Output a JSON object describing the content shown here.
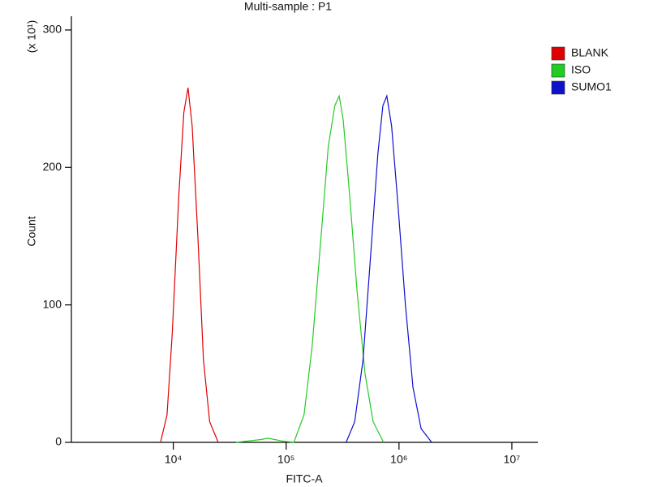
{
  "chart_data": {
    "type": "line",
    "title": "Multi-sample : P1",
    "x_label": "FITC-A",
    "y_label": "Count",
    "y_multiplier": "(x 10¹)",
    "x_scale": "log",
    "xlim": [
      1250,
      17000000
    ],
    "xticks": [
      {
        "value": 10000,
        "label": "10⁴"
      },
      {
        "value": 100000,
        "label": "10⁵"
      },
      {
        "value": 1000000,
        "label": "10⁶"
      },
      {
        "value": 10000000,
        "label": "10⁷"
      }
    ],
    "ylim": [
      0,
      310
    ],
    "yticks": [
      0,
      100,
      200,
      300
    ],
    "legend": "right",
    "series": [
      {
        "name": "BLANK",
        "color": "#e00000",
        "x": [
          7700,
          8800,
          9800,
          11200,
          12400,
          13500,
          14700,
          16500,
          18500,
          21000,
          25000
        ],
        "values": [
          0,
          20,
          80,
          180,
          240,
          258,
          230,
          150,
          60,
          15,
          0
        ]
      },
      {
        "name": "ISO",
        "color": "#22cc22",
        "x": [
          36000,
          59000,
          69000,
          92000,
          117000,
          144000,
          170000,
          204000,
          236000,
          270000,
          295000,
          320000,
          365000,
          425000,
          500000,
          590000,
          730000
        ],
        "values": [
          0,
          2,
          3,
          1,
          0,
          20,
          70,
          150,
          215,
          245,
          252,
          235,
          180,
          110,
          50,
          15,
          0
        ]
      },
      {
        "name": "SUMO1",
        "color": "#1010cc",
        "x": [
          340000,
          405000,
          480000,
          565000,
          650000,
          720000,
          780000,
          860000,
          985000,
          1140000,
          1330000,
          1570000,
          1950000
        ],
        "values": [
          0,
          15,
          60,
          140,
          210,
          245,
          252,
          230,
          170,
          100,
          40,
          10,
          0
        ]
      }
    ]
  }
}
